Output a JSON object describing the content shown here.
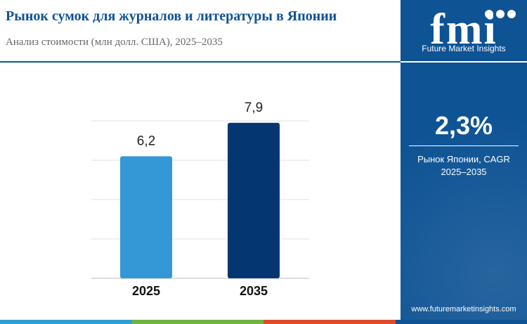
{
  "header": {
    "title": "Рынок сумок для журналов и литературы в Японии",
    "subtitle": "Анализ стоимости (млн долл. США), 2025–2035"
  },
  "brand": {
    "name": "Future Market Insights",
    "logo_text": "fmi",
    "website": "www.futuremarketinsights.com"
  },
  "kpi": {
    "value": "2,3%",
    "label_line1": "Рынок Японии, CAGR",
    "label_line2": "2025–2035"
  },
  "colors": {
    "brand_blue": "#0e5394",
    "bar_2025": "#3497d6",
    "bar_2035": "#043672",
    "bottom_bar": [
      "#2e9fd6",
      "#6fb43f",
      "#e04a2a",
      "#0e5394"
    ]
  },
  "chart_data": {
    "type": "bar",
    "categories": [
      "2025",
      "2035"
    ],
    "values": [
      6.2,
      7.9
    ],
    "value_labels": [
      "6,2",
      "7,9"
    ],
    "ylim": [
      0,
      9
    ],
    "grid": true,
    "title": "",
    "xlabel": "",
    "ylabel": ""
  }
}
